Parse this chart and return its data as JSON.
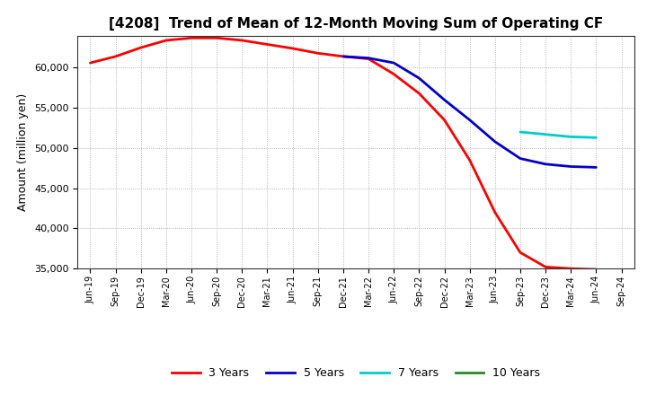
{
  "title": "[4208]  Trend of Mean of 12-Month Moving Sum of Operating CF",
  "ylabel": "Amount (million yen)",
  "ylim": [
    35000,
    64000
  ],
  "yticks": [
    35000,
    40000,
    45000,
    50000,
    55000,
    60000
  ],
  "background_color": "#ffffff",
  "plot_bg_color": "#ffffff",
  "grid_color": "#999999",
  "x_labels": [
    "Jun-19",
    "Sep-19",
    "Dec-19",
    "Mar-20",
    "Jun-20",
    "Sep-20",
    "Dec-20",
    "Mar-21",
    "Jun-21",
    "Sep-21",
    "Dec-21",
    "Mar-22",
    "Jun-22",
    "Sep-22",
    "Dec-22",
    "Mar-23",
    "Jun-23",
    "Sep-23",
    "Dec-23",
    "Mar-24",
    "Jun-24",
    "Sep-24"
  ],
  "series": {
    "3 Years": {
      "color": "#ff0000",
      "data_x": [
        "Jun-19",
        "Sep-19",
        "Dec-19",
        "Mar-20",
        "Jun-20",
        "Sep-20",
        "Dec-20",
        "Mar-21",
        "Jun-21",
        "Sep-21",
        "Dec-21",
        "Mar-22",
        "Jun-22",
        "Sep-22",
        "Dec-22",
        "Mar-23",
        "Jun-23",
        "Sep-23",
        "Dec-23",
        "Mar-24",
        "Jun-24"
      ],
      "data_y": [
        60600,
        61400,
        62500,
        63400,
        63700,
        63700,
        63400,
        62900,
        62400,
        61800,
        61400,
        61100,
        59200,
        56800,
        53500,
        48500,
        42000,
        37000,
        35200,
        35000,
        34900
      ]
    },
    "5 Years": {
      "color": "#0000cc",
      "data_x": [
        "Dec-21",
        "Mar-22",
        "Jun-22",
        "Sep-22",
        "Dec-22",
        "Mar-23",
        "Jun-23",
        "Sep-23",
        "Dec-23",
        "Mar-24",
        "Jun-24"
      ],
      "data_y": [
        61400,
        61200,
        60600,
        58700,
        56000,
        53500,
        50800,
        48700,
        48000,
        47700,
        47600
      ]
    },
    "7 Years": {
      "color": "#00cccc",
      "data_x": [
        "Sep-23",
        "Dec-23",
        "Mar-24",
        "Jun-24"
      ],
      "data_y": [
        52000,
        51700,
        51400,
        51300
      ]
    },
    "10 Years": {
      "color": "#228b22",
      "data_x": [],
      "data_y": []
    }
  },
  "legend_labels": [
    "3 Years",
    "5 Years",
    "7 Years",
    "10 Years"
  ],
  "legend_colors": [
    "#ff0000",
    "#0000cc",
    "#00cccc",
    "#228b22"
  ]
}
